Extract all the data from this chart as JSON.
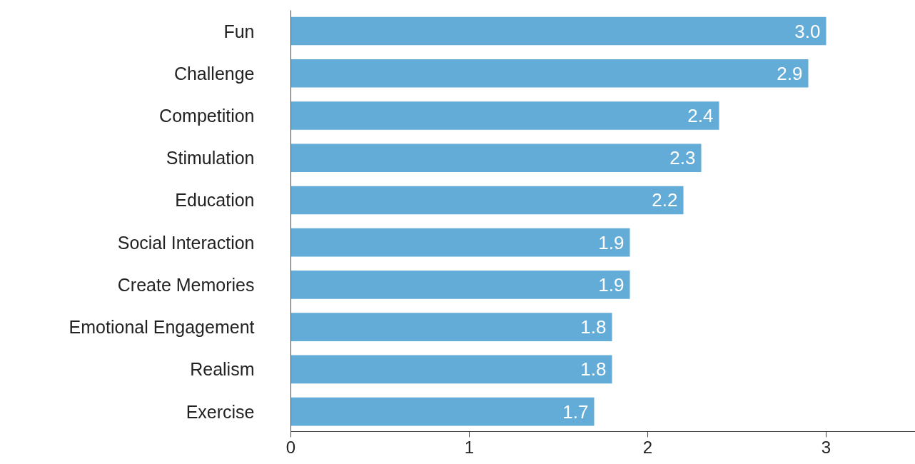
{
  "chart_data": {
    "type": "bar",
    "orientation": "horizontal",
    "categories": [
      "Fun",
      "Challenge",
      "Competition",
      "Stimulation",
      "Education",
      "Social Interaction",
      "Create Memories",
      "Emotional Engagement",
      "Realism",
      "Exercise"
    ],
    "values": [
      3.0,
      2.9,
      2.4,
      2.3,
      2.2,
      1.9,
      1.9,
      1.8,
      1.8,
      1.7
    ],
    "value_labels": [
      "3.0",
      "2.9",
      "2.4",
      "2.3",
      "2.2",
      "1.9",
      "1.9",
      "1.8",
      "1.8",
      "1.7"
    ],
    "color": "#63acd8",
    "xlim": [
      0,
      3.5
    ],
    "xticks": [
      0,
      1,
      2,
      3
    ],
    "grid": false
  }
}
